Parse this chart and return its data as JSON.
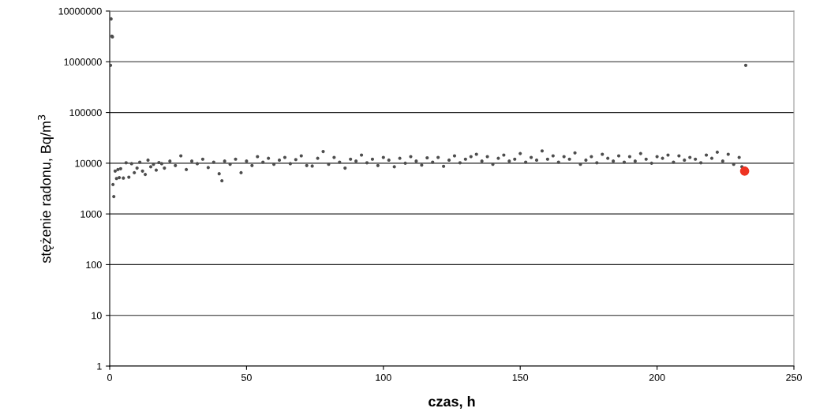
{
  "chart_data": {
    "type": "scatter",
    "xlabel": "czas, h",
    "ylabel": "stężenie radonu, Bq/m$^{3}$",
    "log": "y",
    "xlim": [
      0,
      250
    ],
    "xticks": [
      0,
      50,
      100,
      150,
      200,
      250
    ],
    "ylim": [
      1,
      10000000
    ],
    "yticks": [
      1,
      10,
      100,
      1000,
      10000,
      100000,
      1000000,
      10000000
    ],
    "grid": "y",
    "marker": "circle",
    "series": [
      {
        "color": "#4d4d4d",
        "x": [
          0.3,
          0.5,
          0.8,
          1.0,
          1.2,
          1.5,
          2,
          2.5,
          3,
          3.5,
          4,
          5,
          6,
          7,
          8,
          9,
          10,
          11,
          12,
          13,
          14,
          15,
          16,
          17,
          18,
          19,
          20,
          22,
          24,
          26,
          28,
          30,
          32,
          34,
          36,
          38,
          40,
          41,
          42,
          44,
          46,
          48,
          50,
          52,
          54,
          56,
          58,
          60,
          62,
          64,
          66,
          68,
          70,
          72,
          74,
          76,
          78,
          80,
          82,
          84,
          86,
          88,
          90,
          92,
          94,
          96,
          98,
          100,
          102,
          104,
          106,
          108,
          110,
          112,
          114,
          116,
          118,
          120,
          122,
          124,
          126,
          128,
          130,
          132,
          134,
          136,
          138,
          140,
          142,
          144,
          146,
          148,
          150,
          152,
          154,
          156,
          158,
          160,
          162,
          164,
          166,
          168,
          170,
          172,
          174,
          176,
          178,
          180,
          182,
          184,
          186,
          188,
          190,
          192,
          194,
          196,
          198,
          200,
          202,
          204,
          206,
          208,
          210,
          212,
          214,
          216,
          218,
          220,
          222,
          224,
          226,
          228,
          230,
          231,
          232.4
        ],
        "values": [
          850000,
          7000000,
          3200000,
          3100000,
          3800,
          2200,
          7000,
          5000,
          7500,
          5200,
          7800,
          5100,
          10200,
          5300,
          9800,
          6500,
          8000,
          10500,
          7000,
          6000,
          11500,
          8500,
          9500,
          7300,
          10300,
          9800,
          8000,
          11000,
          9000,
          14000,
          7500,
          11000,
          9800,
          12000,
          8200,
          10500,
          6200,
          4500,
          11000,
          9500,
          12000,
          6500,
          11000,
          9000,
          13500,
          10500,
          12500,
          9500,
          11500,
          13000,
          9800,
          11800,
          14000,
          9000,
          8800,
          12500,
          17000,
          9500,
          13000,
          10500,
          8000,
          12000,
          11000,
          14500,
          10200,
          12000,
          9000,
          13000,
          11500,
          8500,
          12500,
          10000,
          13500,
          11000,
          9200,
          12800,
          10500,
          13000,
          8700,
          11500,
          14000,
          10200,
          12000,
          13500,
          15000,
          11000,
          13500,
          9500,
          12500,
          14500,
          11000,
          12000,
          15500,
          10500,
          13000,
          11500,
          17500,
          12000,
          14000,
          10500,
          13500,
          12000,
          16000,
          9500,
          11500,
          13500,
          10200,
          15000,
          12500,
          11000,
          14000,
          10500,
          13500,
          11000,
          15500,
          12000,
          10000,
          13500,
          12500,
          14500,
          10500,
          14000,
          11500,
          13000,
          12000,
          10200,
          14500,
          12500,
          16500,
          11000,
          15000,
          9500,
          13000,
          8500,
          850000
        ]
      },
      {
        "color": "#ee3322",
        "x": [
          232
        ],
        "values": [
          7000
        ]
      }
    ]
  }
}
